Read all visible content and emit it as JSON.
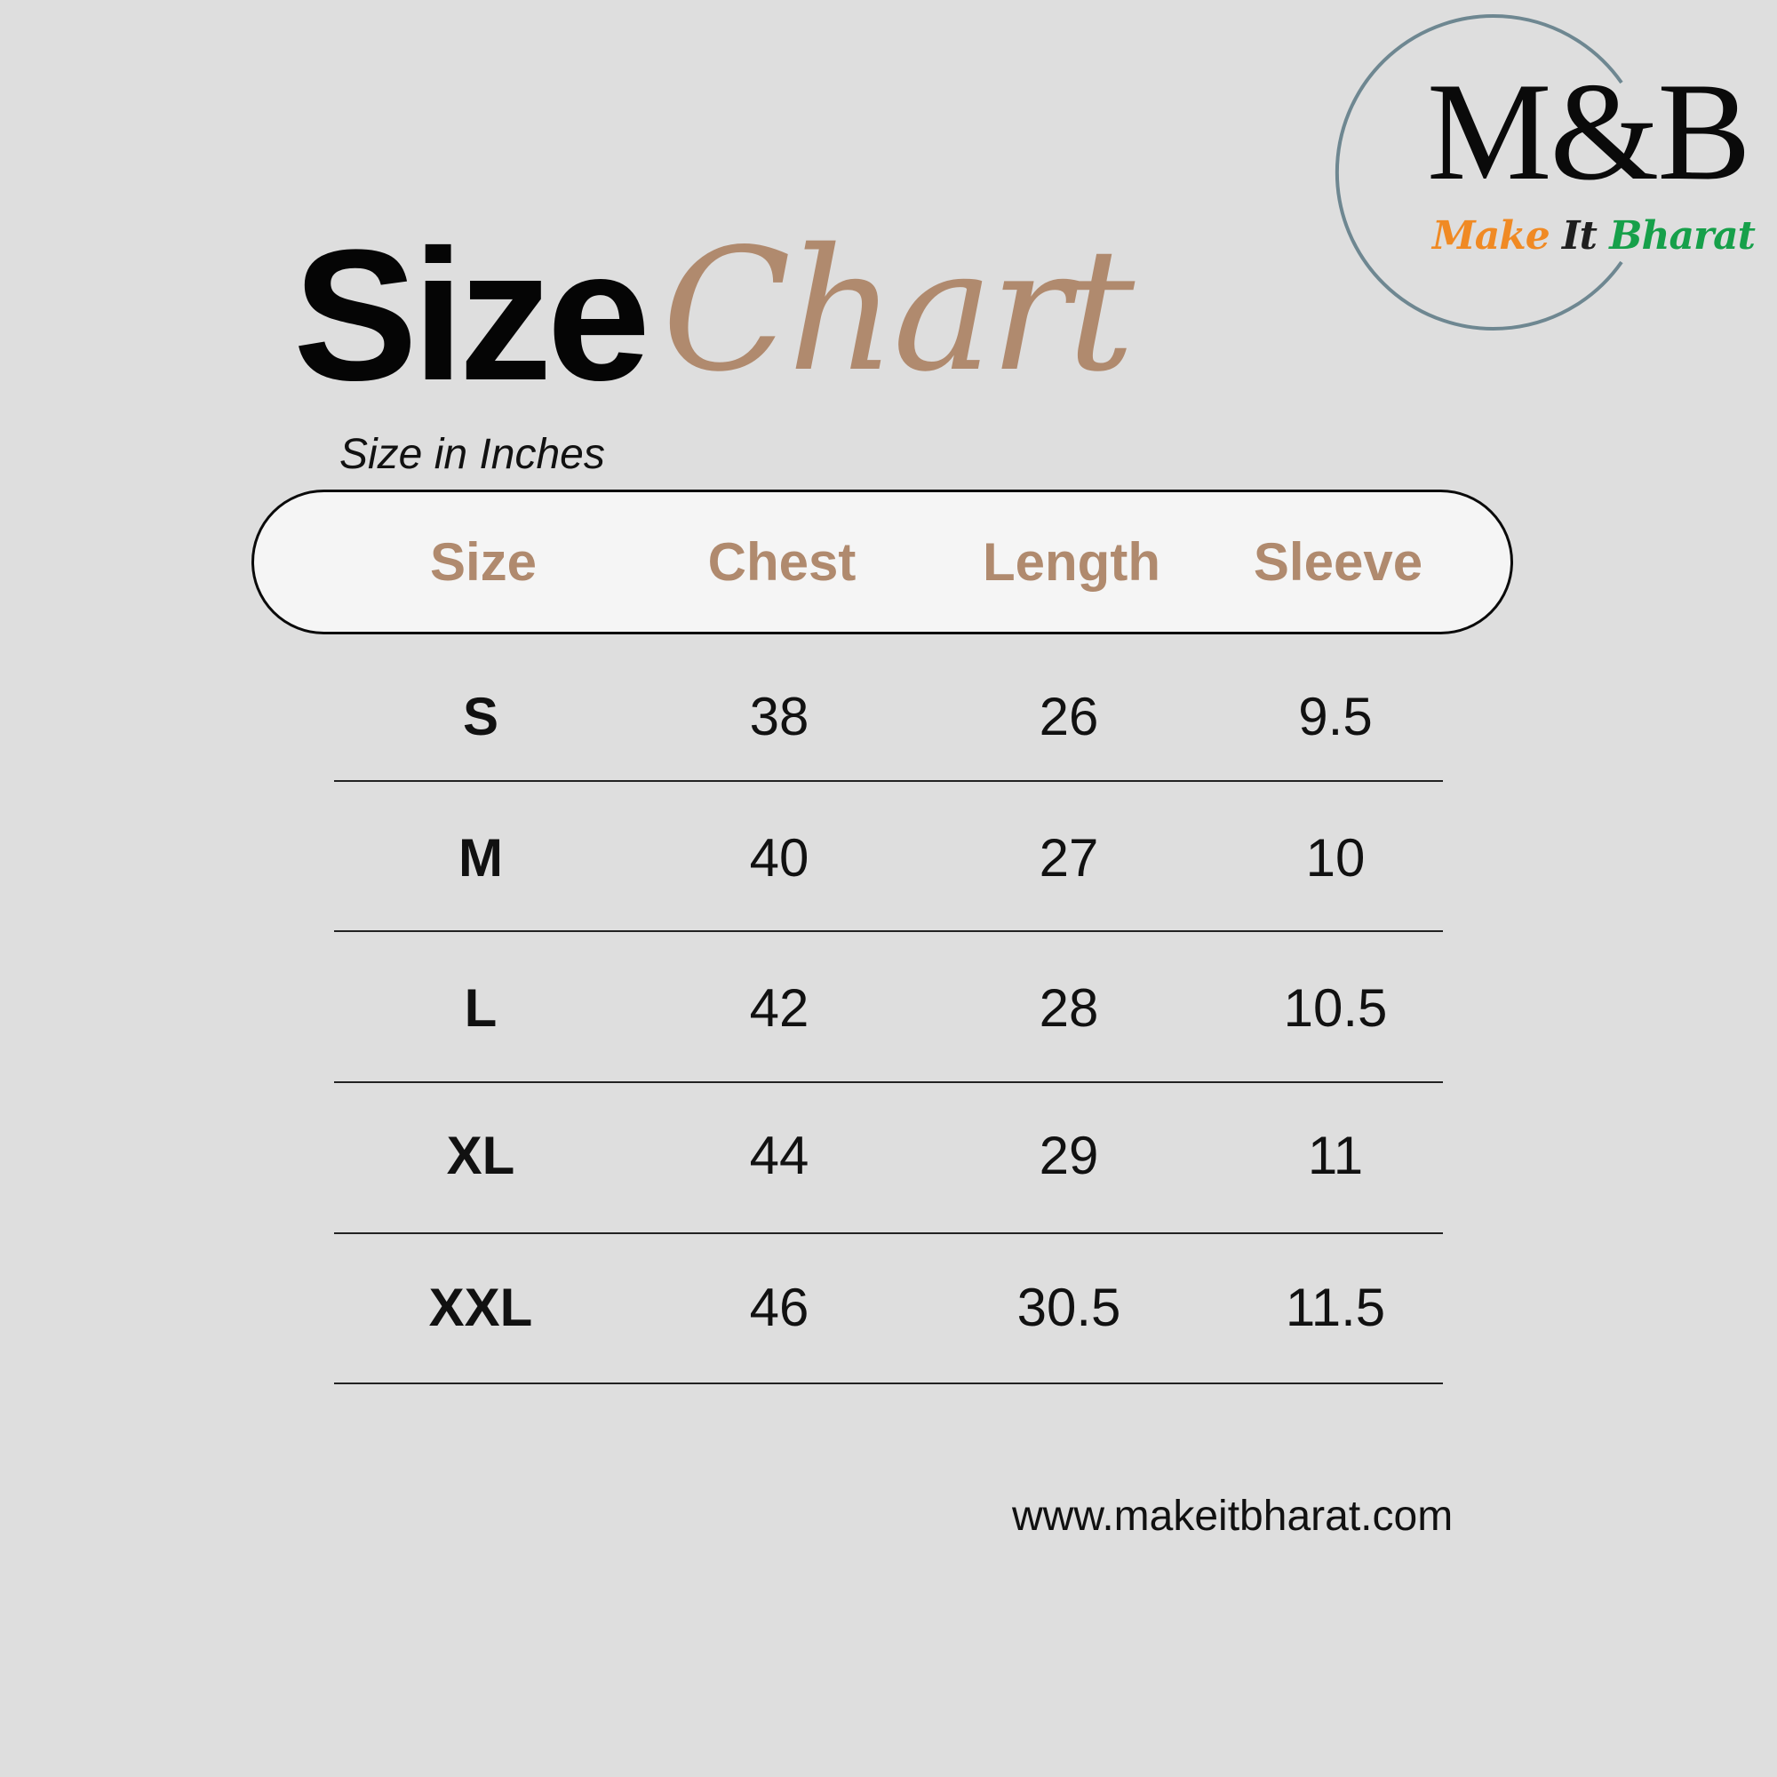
{
  "logo": {
    "brand": "M&B",
    "tagline": {
      "make": "Make",
      "it": "It",
      "bharat": "Bharat"
    },
    "colors": {
      "make": "#f08a24",
      "it": "#1f1f1f",
      "bharat": "#16a04a",
      "ring": "#6e8791"
    }
  },
  "title": {
    "bold": "Size",
    "script": "Chart",
    "script_color": "#b08a6e"
  },
  "unit_note": "Size in Inches",
  "table": {
    "header_color": "#b08a6e",
    "columns": [
      "Size",
      "Chest",
      "Length",
      "Sleeve"
    ],
    "rows": [
      [
        "S",
        "38",
        "26",
        "9.5"
      ],
      [
        "M",
        "40",
        "27",
        "10"
      ],
      [
        "L",
        "42",
        "28",
        "10.5"
      ],
      [
        "XL",
        "44",
        "29",
        "11"
      ],
      [
        "XXL",
        "46",
        "30.5",
        "11.5"
      ]
    ]
  },
  "website": "www.makeitbharat.com"
}
